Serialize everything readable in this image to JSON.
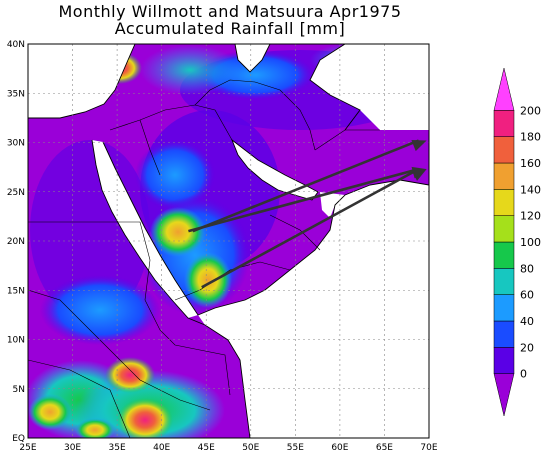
{
  "title_line1": "Monthly Willmott and Matsuura Apr1975",
  "title_line2": "Accumulated Rainfall [mm]",
  "lat_labels": [
    "EQ",
    "5N",
    "10N",
    "15N",
    "20N",
    "25N",
    "30N",
    "35N",
    "40N"
  ],
  "lon_labels": [
    "25E",
    "30E",
    "35E",
    "40E",
    "45E",
    "50E",
    "55E",
    "60E",
    "65E",
    "70E"
  ],
  "colorbar": {
    "labels": [
      "0",
      "20",
      "40",
      "60",
      "80",
      "100",
      "120",
      "140",
      "160",
      "180",
      "200"
    ],
    "colors": [
      "#9a00d8",
      "#5a00e6",
      "#1a4cff",
      "#1c9bff",
      "#17c7c0",
      "#16c84b",
      "#a5e01b",
      "#e6d81b",
      "#f0a030",
      "#f0603c",
      "#f02080",
      "#ff40ff"
    ]
  },
  "arrows": [
    {
      "name": "arrow-to-180",
      "from": [
        43.5,
        21
      ],
      "to": [
        63,
        30.2
      ]
    },
    {
      "name": "arrow-to-150",
      "from": [
        44.5,
        15.3
      ],
      "to": [
        63,
        27.3
      ]
    },
    {
      "name": "arrow-crossing",
      "from": [
        43,
        21
      ],
      "to": [
        63,
        27.3
      ]
    }
  ]
}
